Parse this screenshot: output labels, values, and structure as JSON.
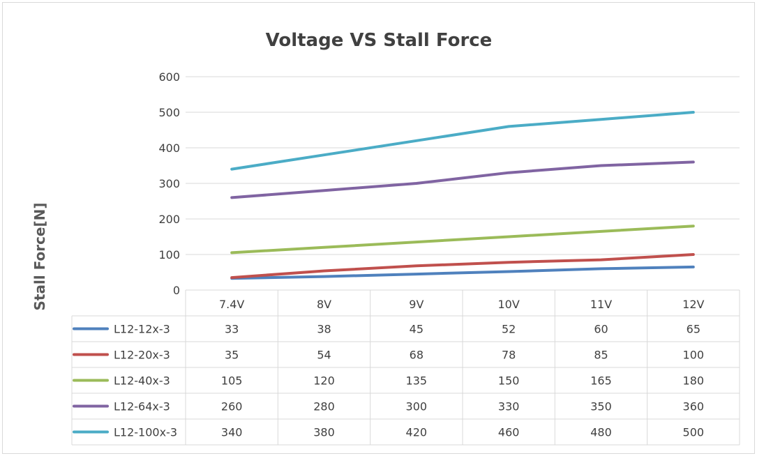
{
  "chart_data": {
    "type": "line",
    "title": "Voltage VS Stall Force",
    "ylabel": "Stall Force[N]",
    "xlabel": "",
    "ylim": [
      0,
      600
    ],
    "yticks": [
      0,
      100,
      200,
      300,
      400,
      500,
      600
    ],
    "categories": [
      "7.4V",
      "8V",
      "9V",
      "10V",
      "11V",
      "12V"
    ],
    "grid": true,
    "legend": "data-table",
    "series": [
      {
        "name": "L12-12x-3",
        "color": "#4f81bd",
        "values": [
          33,
          38,
          45,
          52,
          60,
          65
        ]
      },
      {
        "name": "L12-20x-3",
        "color": "#c0504d",
        "values": [
          35,
          54,
          68,
          78,
          85,
          100
        ]
      },
      {
        "name": "L12-40x-3",
        "color": "#9bbb59",
        "values": [
          105,
          120,
          135,
          150,
          165,
          180
        ]
      },
      {
        "name": "L12-64x-3",
        "color": "#8064a2",
        "values": [
          260,
          280,
          300,
          330,
          350,
          360
        ]
      },
      {
        "name": "L12-100x-3",
        "color": "#4bacc6",
        "values": [
          340,
          380,
          420,
          460,
          480,
          500
        ]
      }
    ]
  }
}
